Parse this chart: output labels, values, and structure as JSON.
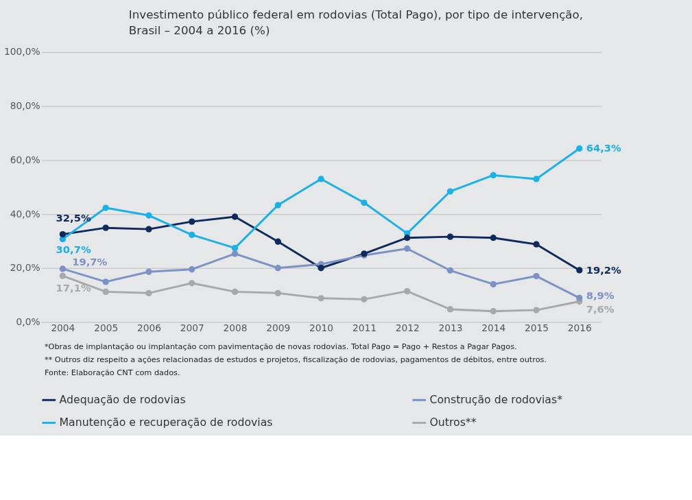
{
  "chart_data": {
    "type": "line",
    "title": "Investimento público federal em rodovias (Total Pago), por tipo de intervenção,\nBrasil – 2004 a 2016 (%)",
    "categories": [
      "2004",
      "2005",
      "2006",
      "2007",
      "2008",
      "2009",
      "2010",
      "2011",
      "2012",
      "2013",
      "2014",
      "2015",
      "2016"
    ],
    "series": [
      {
        "name": "Adequação de rodovias",
        "color": "#0d2a5c",
        "values": [
          32.5,
          34.9,
          34.4,
          37.2,
          39.0,
          29.8,
          20.0,
          25.3,
          31.2,
          31.6,
          31.2,
          28.8,
          19.2
        ],
        "value_labels": [
          "32,5%",
          null,
          null,
          null,
          null,
          null,
          null,
          null,
          null,
          null,
          null,
          null,
          "19,2%"
        ]
      },
      {
        "name": "Construção de rodovias*",
        "color": "#7b92c4",
        "values": [
          19.7,
          14.9,
          18.6,
          19.5,
          25.3,
          20.0,
          21.4,
          24.7,
          27.2,
          19.1,
          14.0,
          17.0,
          8.9
        ],
        "value_labels": [
          "19,7%",
          null,
          null,
          null,
          null,
          null,
          null,
          null,
          null,
          null,
          null,
          null,
          "8,9%"
        ]
      },
      {
        "name": "Manutenção e recuperação de rodovias",
        "color": "#1ab0e8",
        "values": [
          30.7,
          42.3,
          39.5,
          32.3,
          27.4,
          43.3,
          53.0,
          44.2,
          32.8,
          48.4,
          54.4,
          53.0,
          64.3
        ],
        "value_labels": [
          "30,7%",
          null,
          null,
          null,
          null,
          null,
          null,
          null,
          null,
          null,
          null,
          null,
          "64,3%"
        ]
      },
      {
        "name": "Outros**",
        "color": "#a8a8a8",
        "values": [
          17.1,
          11.2,
          10.7,
          14.4,
          11.2,
          10.7,
          8.8,
          8.4,
          11.4,
          4.7,
          4.0,
          4.4,
          7.6
        ],
        "value_labels": [
          "17,1%",
          null,
          null,
          null,
          null,
          null,
          null,
          null,
          null,
          null,
          null,
          null,
          "7,6%"
        ]
      }
    ],
    "ylim": [
      0,
      100
    ],
    "yticks": [
      {
        "value": 0,
        "label": "0,0%"
      },
      {
        "value": 20,
        "label": "20,0%"
      },
      {
        "value": 40,
        "label": "40,0%"
      },
      {
        "value": 60,
        "label": "60,0%"
      },
      {
        "value": 80,
        "label": "80,0%"
      },
      {
        "value": 100,
        "label": "100,0%"
      }
    ],
    "grid": "y",
    "legend": "bottom",
    "marker": "circle",
    "line_style": "solid",
    "annotations": [
      "*Obras de implantação ou implantação com pavimentação de novas rodovias. Total Pago = Pago + Restos a Pagar Pagos.",
      "** Outros diz respeito a ações relacionadas de estudos e projetos, fiscalização de rodovias, pagamentos de débitos, entre outros.",
      "Fonte: Elaboração CNT com dados."
    ]
  }
}
